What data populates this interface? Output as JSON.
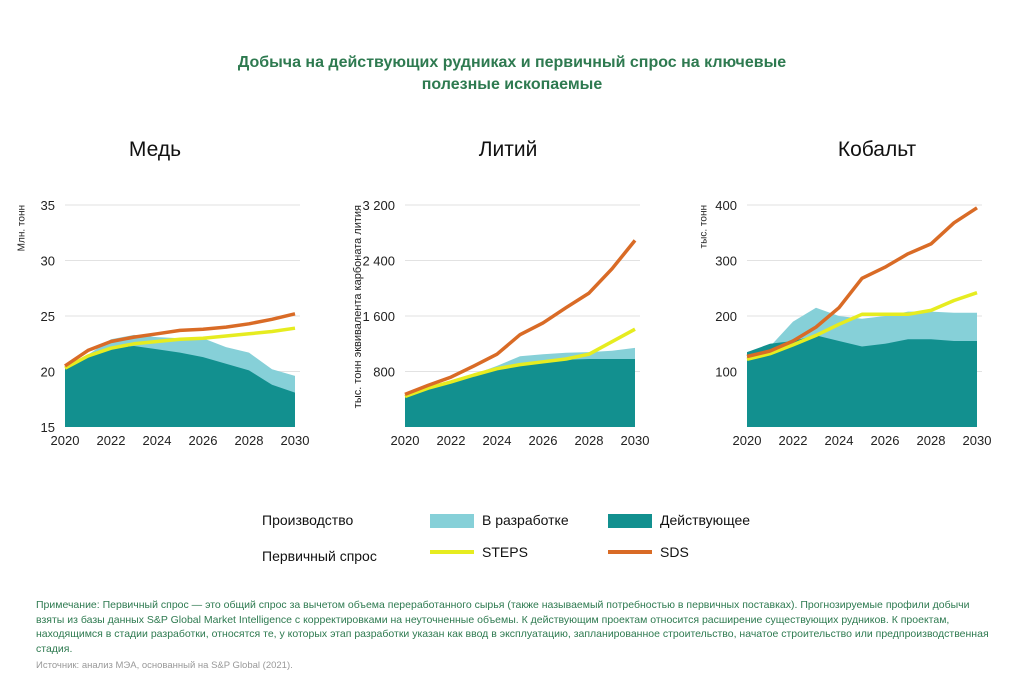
{
  "title_line1": "Добыча на действующих рудниках и первичный спрос на ключевые",
  "title_line2": "полезные ископаемые",
  "colors": {
    "operating": "#12908f",
    "development": "#86d0d8",
    "sds": "#d96b26",
    "steps": "#e6ec20",
    "title": "#2e7a50"
  },
  "legend": {
    "production_label": "Производство",
    "demand_label": "Первичный спрос",
    "development": "В разработке",
    "operating": "Действующее",
    "steps": "STEPS",
    "sds": "SDS"
  },
  "chart_data": [
    {
      "type": "area",
      "title": "Медь",
      "ylabel": "Млн. тонн",
      "ylim": [
        15,
        35
      ],
      "yticks": [
        "15",
        "20",
        "25",
        "30",
        "35"
      ],
      "ytick_values": [
        15,
        20,
        25,
        30,
        35
      ],
      "x": [
        2020,
        2021,
        2022,
        2023,
        2024,
        2025,
        2026,
        2027,
        2028,
        2029,
        2030
      ],
      "xticks": [
        "2020",
        "2022",
        "2024",
        "2026",
        "2028",
        "2030"
      ],
      "series": [
        {
          "name": "Действующее",
          "kind": "area",
          "values": [
            20.3,
            21.3,
            22.1,
            22.3,
            22.0,
            21.7,
            21.3,
            20.7,
            20.1,
            18.8,
            18.1
          ]
        },
        {
          "name": "В разработке",
          "kind": "area-total",
          "values": [
            20.3,
            21.5,
            22.9,
            23.3,
            23.1,
            23.0,
            23.0,
            22.2,
            21.7,
            20.2,
            19.6
          ]
        },
        {
          "name": "STEPS",
          "kind": "line",
          "values": [
            20.3,
            21.4,
            22.1,
            22.5,
            22.7,
            22.9,
            23.0,
            23.2,
            23.4,
            23.6,
            23.9
          ]
        },
        {
          "name": "SDS",
          "kind": "line",
          "values": [
            20.5,
            21.9,
            22.7,
            23.1,
            23.4,
            23.7,
            23.8,
            24.0,
            24.3,
            24.7,
            25.2
          ]
        }
      ]
    },
    {
      "type": "area",
      "title": "Литий",
      "ylabel": "тыс. тонн эквивалента карбоната лития",
      "ylim": [
        0,
        3200
      ],
      "yticks": [
        "800",
        "1 600",
        "2 400",
        "3 200"
      ],
      "ytick_values": [
        800,
        1600,
        2400,
        3200
      ],
      "x": [
        2020,
        2021,
        2022,
        2023,
        2024,
        2025,
        2026,
        2027,
        2028,
        2029,
        2030
      ],
      "xticks": [
        "2020",
        "2022",
        "2024",
        "2026",
        "2028",
        "2030"
      ],
      "series": [
        {
          "name": "Действующее",
          "kind": "area",
          "values": [
            440,
            540,
            630,
            730,
            830,
            920,
            950,
            970,
            980,
            980,
            980
          ]
        },
        {
          "name": "В разработке",
          "kind": "area-total",
          "values": [
            440,
            540,
            640,
            760,
            880,
            1020,
            1050,
            1070,
            1080,
            1100,
            1140
          ]
        },
        {
          "name": "STEPS",
          "kind": "line",
          "values": [
            440,
            560,
            650,
            750,
            840,
            900,
            940,
            980,
            1050,
            1230,
            1410
          ]
        },
        {
          "name": "SDS",
          "kind": "line",
          "values": [
            470,
            600,
            720,
            880,
            1050,
            1330,
            1500,
            1720,
            1930,
            2280,
            2690
          ]
        }
      ]
    },
    {
      "type": "area",
      "title": "Кобальт",
      "ylabel": "тыс. тонн",
      "ylim": [
        0,
        400
      ],
      "yticks": [
        "100",
        "200",
        "300",
        "400"
      ],
      "ytick_values": [
        100,
        200,
        300,
        400
      ],
      "x": [
        2020,
        2021,
        2022,
        2023,
        2024,
        2025,
        2026,
        2027,
        2028,
        2029,
        2030
      ],
      "xticks": [
        "2020",
        "2022",
        "2024",
        "2026",
        "2028",
        "2030"
      ],
      "series": [
        {
          "name": "Действующее",
          "kind": "area",
          "values": [
            135,
            150,
            155,
            165,
            155,
            145,
            150,
            158,
            158,
            155,
            155
          ]
        },
        {
          "name": "В разработке",
          "kind": "area-total",
          "values": [
            135,
            145,
            190,
            215,
            200,
            195,
            200,
            208,
            208,
            206,
            206
          ]
        },
        {
          "name": "STEPS",
          "kind": "line",
          "values": [
            122,
            132,
            148,
            165,
            185,
            203,
            203,
            203,
            210,
            228,
            242
          ]
        },
        {
          "name": "SDS",
          "kind": "line",
          "values": [
            127,
            137,
            155,
            180,
            215,
            268,
            288,
            312,
            330,
            368,
            395
          ]
        }
      ]
    }
  ],
  "note": "Примечание: Первичный спрос — это общий спрос за вычетом объема переработанного сырья (также называемый потребностью в первичных поставках). Прогнозируемые профили добычи взяты из базы данных S&P Global Market Intelligence с корректировками на неуточненные объемы. К действующим проектам относится расширение существующих рудников. К проектам, находящимся в стадии разработки, относятся те, у которых этап разработки указан как ввод в эксплуатацию, запланированное строительство, начатое строительство или предпроизводственная стадия.",
  "source": "Источник: анализ МЭА, основанный на S&P Global (2021)."
}
